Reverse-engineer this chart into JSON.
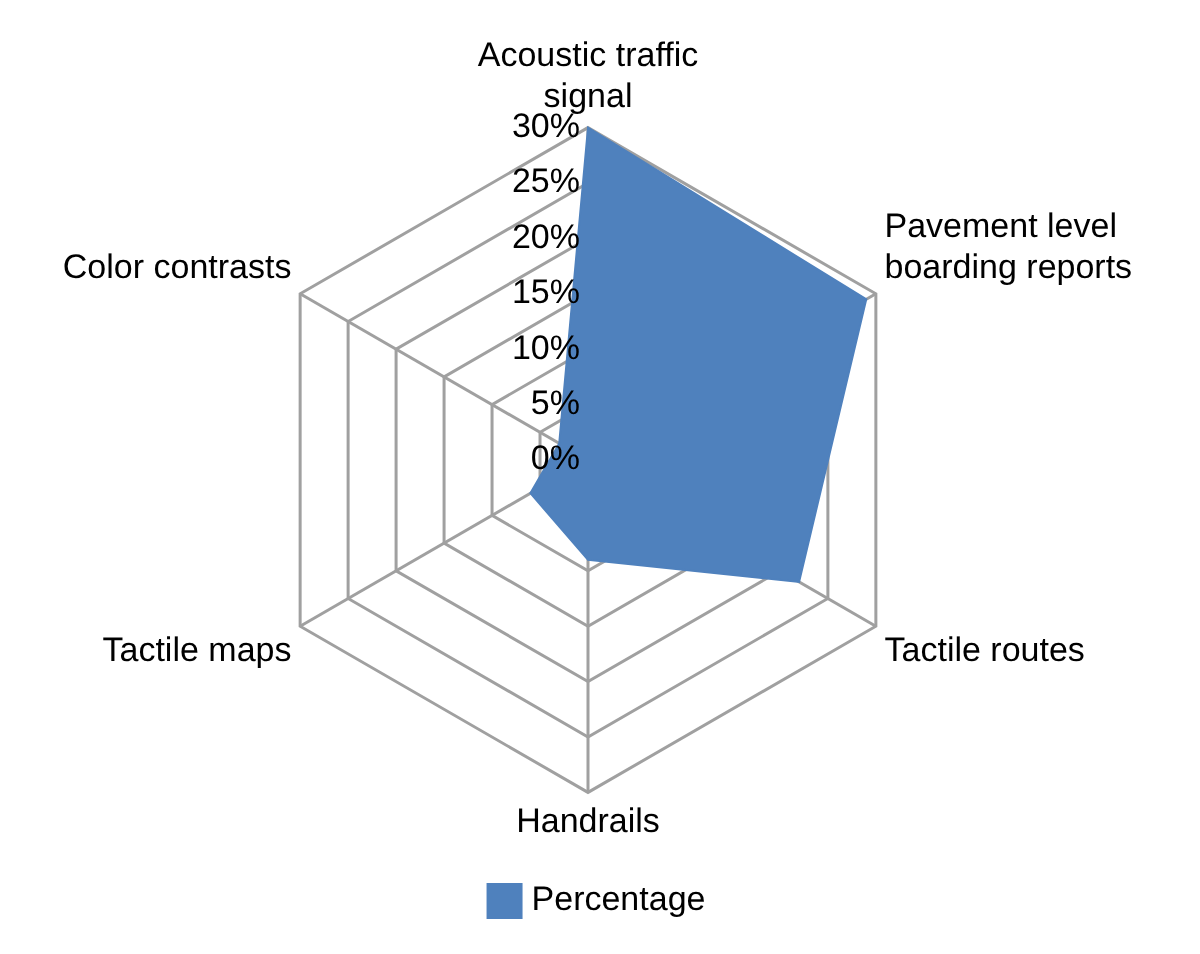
{
  "chart_data": {
    "type": "radar",
    "categories": [
      "Acoustic traffic signal",
      "Pavement level boarding reports",
      "Tactile routes",
      "Handrails",
      "Tactile maps",
      "Color contrasts"
    ],
    "series": [
      {
        "name": "Percentage",
        "color": "#4f81bd",
        "values": [
          30,
          29,
          22,
          9,
          6,
          3
        ]
      }
    ],
    "ylim": [
      0,
      30
    ],
    "yticks": [
      {
        "value": 0,
        "label": "0%"
      },
      {
        "value": 5,
        "label": "5%"
      },
      {
        "value": 10,
        "label": "10%"
      },
      {
        "value": 15,
        "label": "15%"
      },
      {
        "value": 20,
        "label": "20%"
      },
      {
        "value": 25,
        "label": "25%"
      },
      {
        "value": 30,
        "label": "30%"
      }
    ],
    "grid": true,
    "legend": "bottom",
    "marker": "none"
  }
}
